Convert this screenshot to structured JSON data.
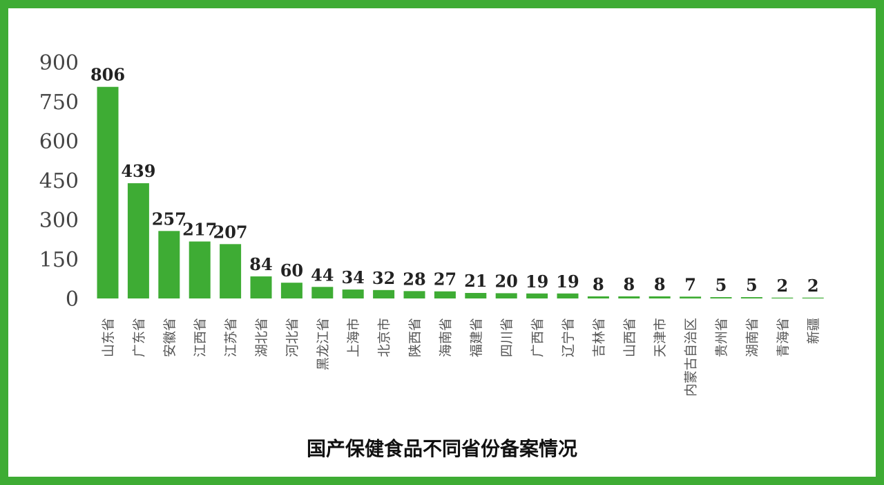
{
  "chart_data": {
    "type": "bar",
    "title": "国产保健食品不同省份备案情况",
    "xlabel": "",
    "ylabel": "",
    "ylim": [
      0,
      900
    ],
    "yticks": [
      0,
      150,
      300,
      450,
      600,
      750,
      900
    ],
    "grid": false,
    "legend": "none",
    "bar_color": "#3eac34",
    "categories": [
      "山东省",
      "广东省",
      "安徽省",
      "江西省",
      "江苏省",
      "湖北省",
      "河北省",
      "黑龙江省",
      "上海市",
      "北京市",
      "陕西省",
      "海南省",
      "福建省",
      "四川省",
      "广西省",
      "辽宁省",
      "吉林省",
      "山西省",
      "天津市",
      "内蒙古自治区",
      "贵州省",
      "湖南省",
      "青海省",
      "新疆"
    ],
    "values": [
      806,
      439,
      257,
      217,
      207,
      84,
      60,
      44,
      34,
      32,
      28,
      27,
      21,
      20,
      19,
      19,
      8,
      8,
      8,
      7,
      5,
      5,
      2,
      2
    ]
  },
  "colors": {
    "frame": "#3eac34",
    "bar": "#3eac34",
    "axis_text": "#444444",
    "value_text": "#222222",
    "category_text": "#555555"
  }
}
